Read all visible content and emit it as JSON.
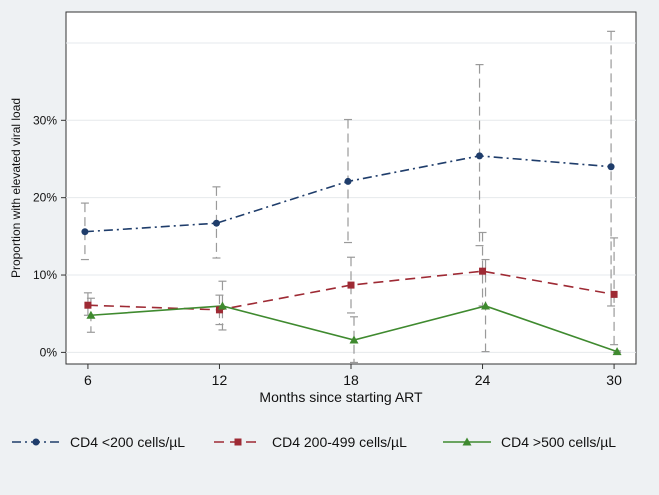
{
  "chart_data": {
    "type": "line",
    "xlabel": "Months since starting ART",
    "ylabel": "Proportion with elevated viral load",
    "x": [
      6,
      12,
      18,
      24,
      30
    ],
    "x_ticks": [
      "6",
      "12",
      "18",
      "24",
      "30"
    ],
    "xlim": [
      5,
      31
    ],
    "y_ticks": [
      "0%",
      "10%",
      "20%",
      "30%"
    ],
    "y_tick_values": [
      0,
      10,
      20,
      30
    ],
    "ylim": [
      -1.5,
      44
    ],
    "grid": true,
    "legend_position": "bottom",
    "series": [
      {
        "name": "CD4 <200 cells/µL",
        "color": "#1f3d6b",
        "line_style": "dash-dot",
        "marker": "circle",
        "values": [
          15.6,
          16.7,
          22.1,
          25.4,
          24.0
        ],
        "ci_low": [
          12.0,
          12.2,
          14.2,
          13.8,
          6.0
        ],
        "ci_high": [
          19.3,
          21.4,
          30.1,
          37.2,
          41.5
        ]
      },
      {
        "name": "CD4 200-499 cells/µL",
        "color": "#9e2a34",
        "line_style": "dash",
        "marker": "square",
        "values": [
          6.1,
          5.5,
          8.7,
          10.5,
          7.5
        ],
        "ci_low": [
          4.8,
          3.6,
          5.1,
          6.0,
          1.0
        ],
        "ci_high": [
          7.7,
          7.4,
          12.3,
          15.5,
          14.8
        ]
      },
      {
        "name": "CD4 >500 cells/µL",
        "color": "#3f8a2f",
        "line_style": "solid",
        "marker": "triangle",
        "values": [
          4.8,
          6.0,
          1.6,
          6.0,
          0.1
        ],
        "ci_low": [
          2.6,
          2.9,
          -1.3,
          0.1,
          0.0
        ],
        "ci_high": [
          7.0,
          9.2,
          4.6,
          12.0,
          0.2
        ]
      }
    ]
  }
}
